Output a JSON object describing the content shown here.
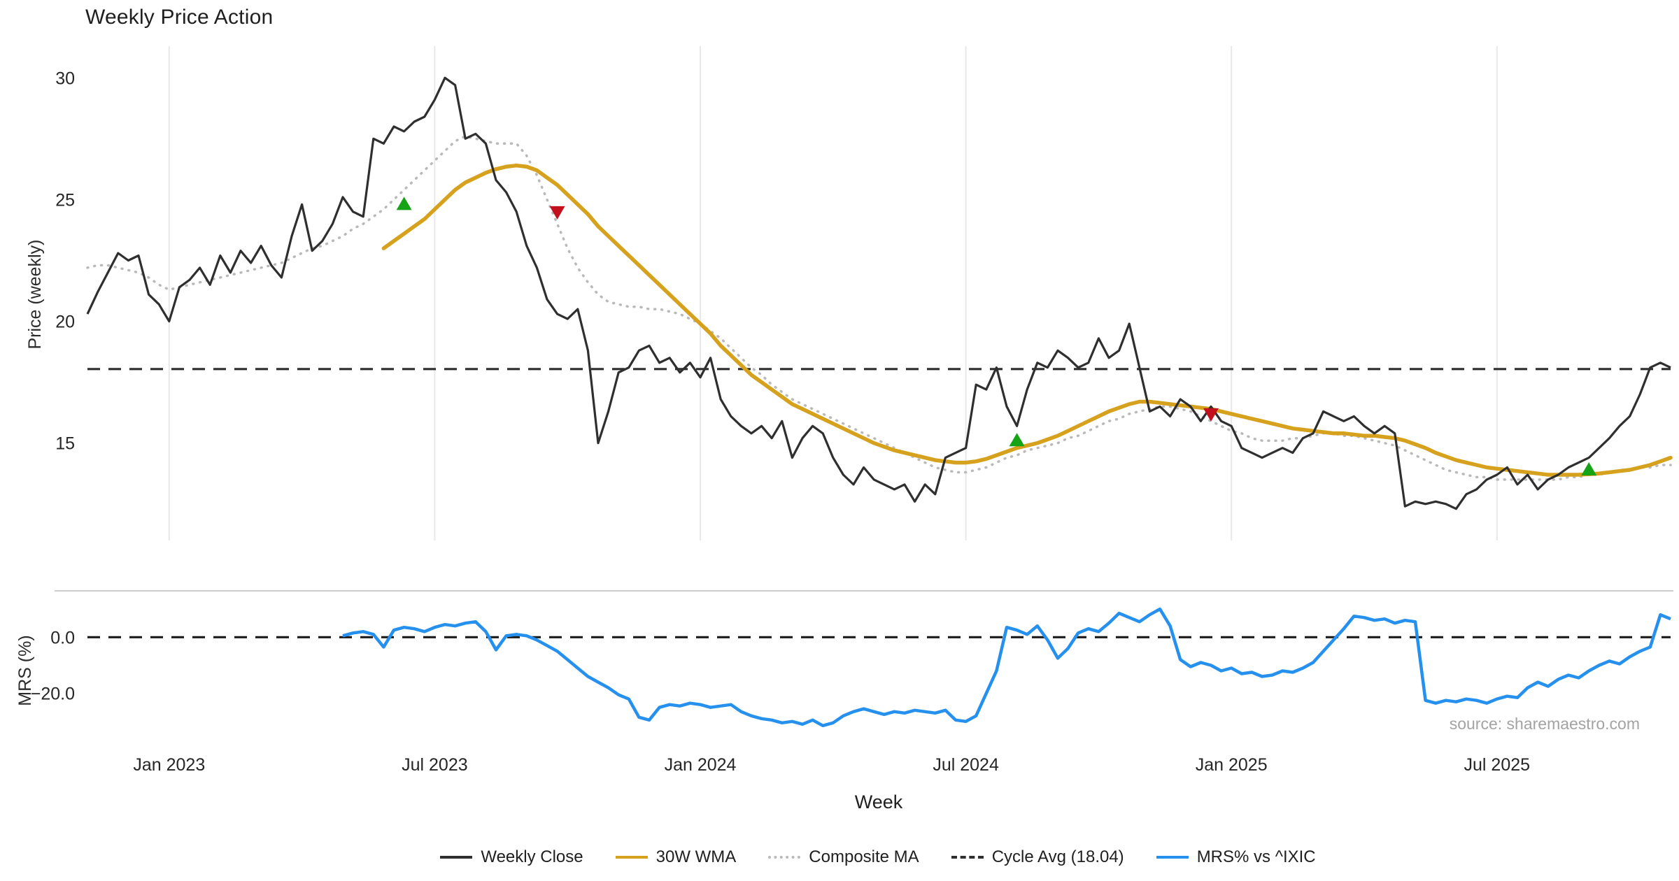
{
  "title": "Weekly Price Action",
  "xlabel": "Week",
  "source_text": "source: sharemaestro.com",
  "price_panel": {
    "ylabel": "Price (weekly)",
    "yticks": [
      30,
      25,
      20,
      15
    ],
    "ylim": [
      11.0,
      31.3
    ]
  },
  "mrs_panel": {
    "ylabel": "MRS (%)",
    "yticks": [
      0.0,
      -20.0
    ],
    "ytick_labels": [
      "0.0",
      "−20.0"
    ],
    "ylim": [
      -40.0,
      16.5
    ]
  },
  "x_ticks": [
    {
      "label": "Jan 2023",
      "week": 8
    },
    {
      "label": "Jul 2023",
      "week": 34
    },
    {
      "label": "Jan 2024",
      "week": 60
    },
    {
      "label": "Jul 2024",
      "week": 86
    },
    {
      "label": "Jan 2025",
      "week": 112
    },
    {
      "label": "Jul 2025",
      "week": 138
    }
  ],
  "legend": [
    {
      "label": "Weekly Close",
      "style": "solid",
      "color": "#2f2f2f"
    },
    {
      "label": "30W WMA",
      "style": "solid",
      "color": "#d6a11d"
    },
    {
      "label": "Composite MA",
      "style": "dotted",
      "color": "#b9b9b9"
    },
    {
      "label": "Cycle Avg (18.04)",
      "style": "dashed",
      "color": "#2f2f2f"
    },
    {
      "label": "MRS% vs ^IXIC",
      "style": "solid",
      "color": "#2590ed"
    }
  ],
  "chart_data": {
    "type": "line",
    "x_unit": "week_index",
    "n_weeks": 156,
    "cycle_avg": 18.04,
    "grid": "vertical-only",
    "signal_colors": {
      "buy": "#16a316",
      "sell": "#c2101c"
    },
    "signals": {
      "buy": [
        {
          "week": 31,
          "price": 24.8
        },
        {
          "week": 91,
          "price": 15.1
        },
        {
          "week": 147,
          "price": 13.9
        }
      ],
      "sell": [
        {
          "week": 46,
          "price": 24.5
        },
        {
          "week": 110,
          "price": 16.2
        }
      ]
    },
    "series": [
      {
        "name": "Weekly Close",
        "panel": "price",
        "color": "#2f2f2f",
        "dash": "solid",
        "values": [
          20.3,
          21.2,
          22.0,
          22.8,
          22.5,
          22.7,
          21.1,
          20.7,
          20.0,
          21.4,
          21.7,
          22.2,
          21.5,
          22.7,
          22.0,
          22.9,
          22.4,
          23.1,
          22.3,
          21.8,
          23.5,
          24.8,
          22.9,
          23.3,
          24.0,
          25.1,
          24.5,
          24.3,
          27.5,
          27.3,
          28.0,
          27.8,
          28.2,
          28.4,
          29.1,
          30.0,
          29.7,
          27.5,
          27.7,
          27.3,
          25.8,
          25.3,
          24.5,
          23.1,
          22.2,
          20.9,
          20.3,
          20.1,
          20.5,
          18.8,
          15.0,
          16.3,
          17.9,
          18.1,
          18.8,
          19.0,
          18.3,
          18.5,
          17.9,
          18.3,
          17.7,
          18.5,
          16.8,
          16.1,
          15.7,
          15.4,
          15.7,
          15.2,
          15.9,
          14.4,
          15.2,
          15.7,
          15.4,
          14.4,
          13.7,
          13.3,
          14.0,
          13.5,
          13.3,
          13.1,
          13.3,
          12.6,
          13.3,
          12.9,
          14.4,
          14.6,
          14.8,
          17.4,
          17.2,
          18.1,
          16.5,
          15.7,
          17.2,
          18.3,
          18.1,
          18.8,
          18.5,
          18.1,
          18.3,
          19.3,
          18.5,
          18.8,
          19.9,
          18.1,
          16.3,
          16.5,
          16.1,
          16.8,
          16.5,
          15.9,
          16.5,
          15.9,
          15.7,
          14.8,
          14.6,
          14.4,
          14.6,
          14.8,
          14.6,
          15.2,
          15.4,
          16.3,
          16.1,
          15.9,
          16.1,
          15.7,
          15.4,
          15.7,
          15.4,
          12.4,
          12.6,
          12.5,
          12.6,
          12.5,
          12.3,
          12.9,
          13.1,
          13.5,
          13.7,
          14.0,
          13.3,
          13.7,
          13.1,
          13.5,
          13.7,
          14.0,
          14.2,
          14.4,
          14.8,
          15.2,
          15.7,
          16.1,
          17.0,
          18.1,
          18.3,
          18.1
        ]
      },
      {
        "name": "30W WMA",
        "panel": "price",
        "color": "#d6a11d",
        "dash": "solid",
        "values": [
          null,
          null,
          null,
          null,
          null,
          null,
          null,
          null,
          null,
          null,
          null,
          null,
          null,
          null,
          null,
          null,
          null,
          null,
          null,
          null,
          null,
          null,
          null,
          null,
          null,
          null,
          null,
          null,
          null,
          23.0,
          23.3,
          23.6,
          23.9,
          24.2,
          24.6,
          25.0,
          25.4,
          25.7,
          25.9,
          26.1,
          26.25,
          26.35,
          26.4,
          26.35,
          26.2,
          25.9,
          25.6,
          25.2,
          24.8,
          24.4,
          23.9,
          23.5,
          23.1,
          22.7,
          22.3,
          21.9,
          21.5,
          21.1,
          20.7,
          20.3,
          19.9,
          19.5,
          19.0,
          18.6,
          18.2,
          17.8,
          17.5,
          17.2,
          16.9,
          16.6,
          16.4,
          16.2,
          16.0,
          15.8,
          15.6,
          15.4,
          15.2,
          15.0,
          14.85,
          14.7,
          14.6,
          14.5,
          14.4,
          14.3,
          14.25,
          14.2,
          14.2,
          14.25,
          14.35,
          14.5,
          14.65,
          14.8,
          14.9,
          15.0,
          15.15,
          15.3,
          15.5,
          15.7,
          15.9,
          16.1,
          16.3,
          16.45,
          16.6,
          16.7,
          16.7,
          16.65,
          16.6,
          16.55,
          16.5,
          16.45,
          16.4,
          16.3,
          16.2,
          16.1,
          16.0,
          15.9,
          15.8,
          15.7,
          15.6,
          15.55,
          15.5,
          15.45,
          15.4,
          15.4,
          15.35,
          15.3,
          15.3,
          15.25,
          15.2,
          15.1,
          14.95,
          14.8,
          14.6,
          14.45,
          14.3,
          14.2,
          14.1,
          14.0,
          13.95,
          13.9,
          13.85,
          13.8,
          13.75,
          13.7,
          13.7,
          13.7,
          13.7,
          13.72,
          13.75,
          13.8,
          13.85,
          13.9,
          14.0,
          14.1,
          14.25,
          14.4
        ]
      },
      {
        "name": "Composite MA",
        "panel": "price",
        "color": "#b9b9b9",
        "dash": "dotted",
        "values": [
          22.2,
          22.3,
          22.3,
          22.2,
          22.1,
          22.0,
          21.8,
          21.5,
          21.3,
          21.4,
          21.5,
          21.6,
          21.7,
          21.8,
          21.9,
          22.0,
          22.1,
          22.2,
          22.3,
          22.4,
          22.6,
          22.8,
          23.0,
          23.1,
          23.3,
          23.5,
          23.8,
          24.0,
          24.3,
          24.6,
          25.0,
          25.4,
          25.8,
          26.2,
          26.6,
          27.0,
          27.4,
          27.6,
          27.5,
          27.4,
          27.3,
          27.3,
          27.3,
          26.8,
          26.0,
          25.0,
          24.0,
          23.0,
          22.2,
          21.6,
          21.1,
          20.8,
          20.7,
          20.6,
          20.6,
          20.5,
          20.5,
          20.4,
          20.3,
          20.1,
          19.9,
          19.6,
          19.3,
          18.9,
          18.5,
          18.1,
          17.8,
          17.4,
          17.1,
          16.8,
          16.6,
          16.4,
          16.2,
          16.0,
          15.8,
          15.6,
          15.4,
          15.2,
          15.0,
          14.8,
          14.6,
          14.4,
          14.2,
          14.0,
          13.9,
          13.8,
          13.8,
          13.9,
          14.0,
          14.2,
          14.4,
          14.5,
          14.7,
          14.8,
          14.9,
          15.0,
          15.2,
          15.3,
          15.5,
          15.7,
          15.9,
          16.0,
          16.2,
          16.3,
          16.4,
          16.5,
          16.5,
          16.4,
          16.3,
          16.1,
          15.9,
          15.7,
          15.5,
          15.4,
          15.2,
          15.1,
          15.1,
          15.1,
          15.2,
          15.2,
          15.3,
          15.4,
          15.4,
          15.3,
          15.3,
          15.2,
          15.1,
          15.0,
          14.9,
          14.7,
          14.5,
          14.3,
          14.1,
          13.9,
          13.8,
          13.7,
          13.6,
          13.6,
          13.5,
          13.5,
          13.5,
          13.5,
          13.5,
          13.5,
          13.5,
          13.6,
          13.6,
          13.7,
          13.7,
          13.8,
          13.9,
          13.9,
          14.0,
          14.0,
          14.1,
          14.1
        ]
      },
      {
        "name": "MRS% vs ^IXIC",
        "panel": "mrs",
        "color": "#2590ed",
        "dash": "solid",
        "values": [
          null,
          null,
          null,
          null,
          null,
          null,
          null,
          null,
          null,
          null,
          null,
          null,
          null,
          null,
          null,
          null,
          null,
          null,
          null,
          null,
          null,
          null,
          null,
          null,
          null,
          0.5,
          1.5,
          2.0,
          1.0,
          -3.5,
          2.5,
          3.5,
          3.0,
          2.0,
          3.5,
          4.5,
          4.0,
          5.0,
          5.5,
          2.0,
          -4.5,
          0.5,
          1.0,
          0.5,
          -1.0,
          -3.0,
          -5.0,
          -8.0,
          -11.0,
          -14.0,
          -16.0,
          -18.0,
          -20.5,
          -22.0,
          -28.5,
          -29.5,
          -25.0,
          -24.0,
          -24.5,
          -23.5,
          -24.0,
          -25.0,
          -24.5,
          -24.0,
          -26.5,
          -28.0,
          -29.0,
          -29.5,
          -30.5,
          -30.0,
          -31.0,
          -29.5,
          -31.5,
          -30.5,
          -28.0,
          -26.5,
          -25.5,
          -26.5,
          -27.5,
          -26.5,
          -27.0,
          -26.0,
          -26.5,
          -27.0,
          -26.0,
          -29.5,
          -30.0,
          -28.0,
          -20.0,
          -12.0,
          3.5,
          2.5,
          1.0,
          4.0,
          -1.0,
          -7.5,
          -4.0,
          1.5,
          3.0,
          2.0,
          5.0,
          8.5,
          7.0,
          5.5,
          8.0,
          10.0,
          4.0,
          -8.0,
          -10.5,
          -9.0,
          -10.0,
          -12.0,
          -11.0,
          -13.0,
          -12.5,
          -14.0,
          -13.5,
          -12.0,
          -12.5,
          -11.0,
          -9.0,
          -5.0,
          -1.0,
          3.0,
          7.5,
          7.0,
          6.0,
          6.5,
          5.0,
          6.0,
          5.5,
          -22.5,
          -23.5,
          -22.5,
          -23.0,
          -22.0,
          -22.5,
          -23.5,
          -22.0,
          -21.0,
          -21.5,
          -18.0,
          -16.0,
          -17.5,
          -15.0,
          -13.5,
          -14.5,
          -12.0,
          -10.0,
          -8.5,
          -9.5,
          -7.0,
          -5.0,
          -3.5,
          8.0,
          6.5
        ]
      }
    ]
  }
}
